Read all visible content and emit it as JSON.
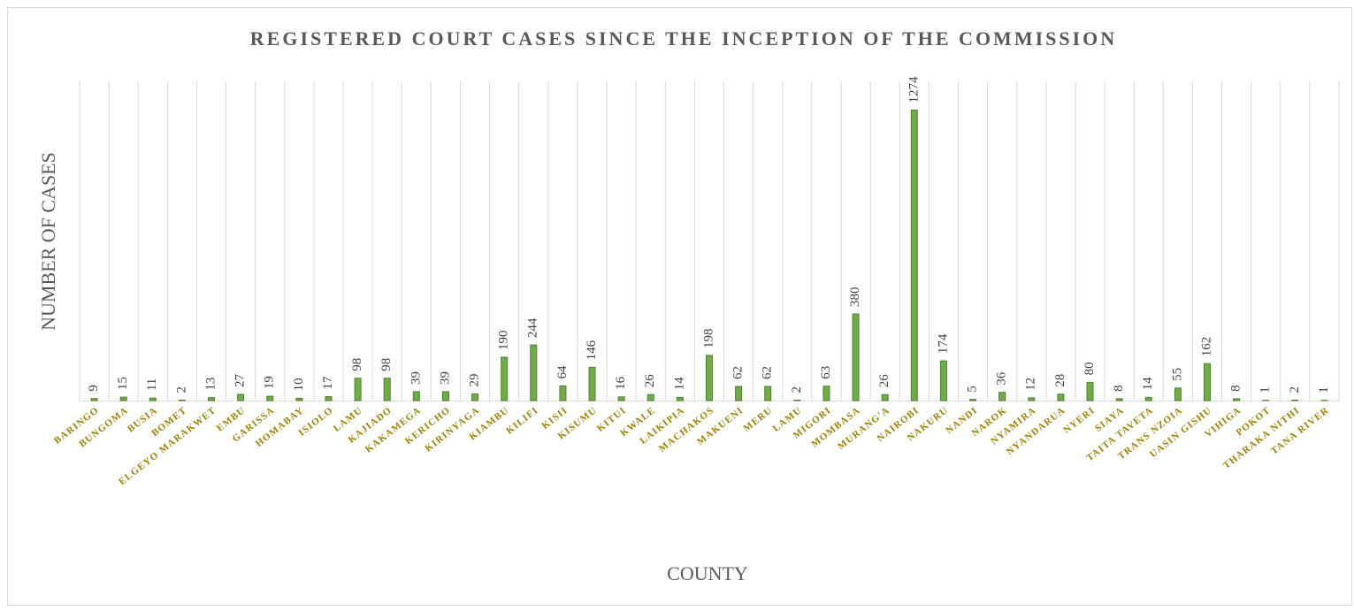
{
  "chart_data": {
    "type": "bar",
    "title": "REGISTERED COURT CASES SINCE THE INCEPTION OF THE COMMISSION",
    "x_label": "COUNTY",
    "y_label": "NUMBER OF CASES",
    "categories": [
      "BARINGO",
      "BUNGOMA",
      "BUSIA",
      "BOMET",
      "ELGEYO MARAKWET",
      "EMBU",
      "GARISSA",
      "HOMABAY",
      "ISIOLO",
      "LAMU",
      "KAJIADO",
      "KAKAMEGA",
      "KERICHO",
      "KIRINYAGA",
      "KIAMBU",
      "KILIFI",
      "KISII",
      "KISUMU",
      "KITUI",
      "KWALE",
      "LAIKIPIA",
      "MACHAKOS",
      "MAKUENI",
      "MERU",
      "LAMU",
      "MIGORI",
      "MOMBASA",
      "MURANG'A",
      "NAIROBI",
      "NAKURU",
      "NANDI",
      "NAROK",
      "NYAMIRA",
      "NYANDARUA",
      "NYERI",
      "SIAYA",
      "TAITA TAVETA",
      "TRANS NZOIA",
      "UASIN GISHU",
      "VIHIGA",
      "POKOT",
      "THARAKA NITHI",
      "TANA RIVER"
    ],
    "values": [
      9,
      15,
      11,
      2,
      13,
      27,
      19,
      10,
      17,
      98,
      98,
      39,
      39,
      29,
      190,
      244,
      64,
      146,
      16,
      26,
      14,
      198,
      62,
      62,
      2,
      63,
      380,
      26,
      1274,
      174,
      5,
      36,
      12,
      28,
      80,
      8,
      14,
      55,
      162,
      8,
      1,
      2,
      1
    ],
    "color": "#70ad47",
    "ylim": [
      0,
      1400
    ],
    "grid": true
  }
}
